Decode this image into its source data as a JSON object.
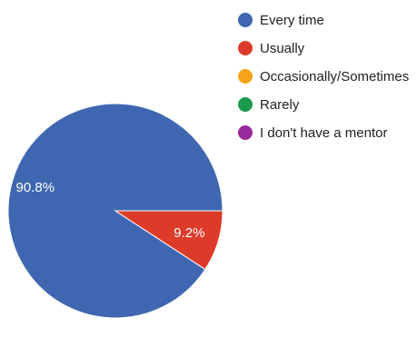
{
  "chart_data": {
    "type": "pie",
    "categories": [
      "Every time",
      "Usually",
      "Occasionally/Sometimes",
      "Rarely",
      "I don't have a mentor"
    ],
    "values": [
      90.8,
      9.2,
      0,
      0,
      0
    ],
    "value_labels": [
      "90.8%",
      "9.2%",
      "",
      "",
      ""
    ],
    "colors": [
      "#3f67b1",
      "#dc3b2a",
      "#f5a31a",
      "#1a9b4d",
      "#982a9a"
    ],
    "legend_position": "top-right"
  }
}
